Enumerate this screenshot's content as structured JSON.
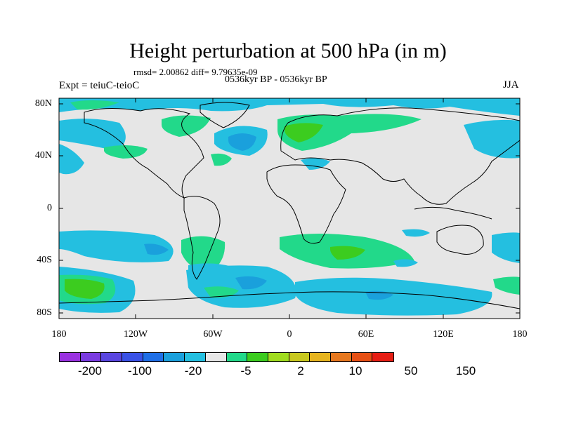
{
  "title": "Height perturbation at 500 hPa (in m)",
  "stats_line": "rmsd= 2.00862 diff= 9.79635e-09",
  "period": "0536kyr BP - 0536kyr BP",
  "experiment": "Expt = teiuC-teioC",
  "season": "JJA",
  "y_ticks": [
    "80N",
    "40N",
    "0",
    "40S",
    "80S"
  ],
  "x_ticks": [
    "180",
    "120W",
    "60W",
    "0",
    "60E",
    "120E",
    "180"
  ],
  "colorbar": {
    "colors": [
      "#9a32e0",
      "#7a3be0",
      "#5a46e0",
      "#3a52e6",
      "#1f6fe6",
      "#1aa0dc",
      "#24bfe0",
      "#e6e6e6",
      "#22d98a",
      "#3ccc1f",
      "#a0dc1f",
      "#c8c81f",
      "#e6b41f",
      "#e6781f",
      "#e65014",
      "#e61e14"
    ],
    "labels": [
      "-200",
      "-100",
      "-20",
      "-5",
      "2",
      "10",
      "50",
      "150"
    ]
  }
}
